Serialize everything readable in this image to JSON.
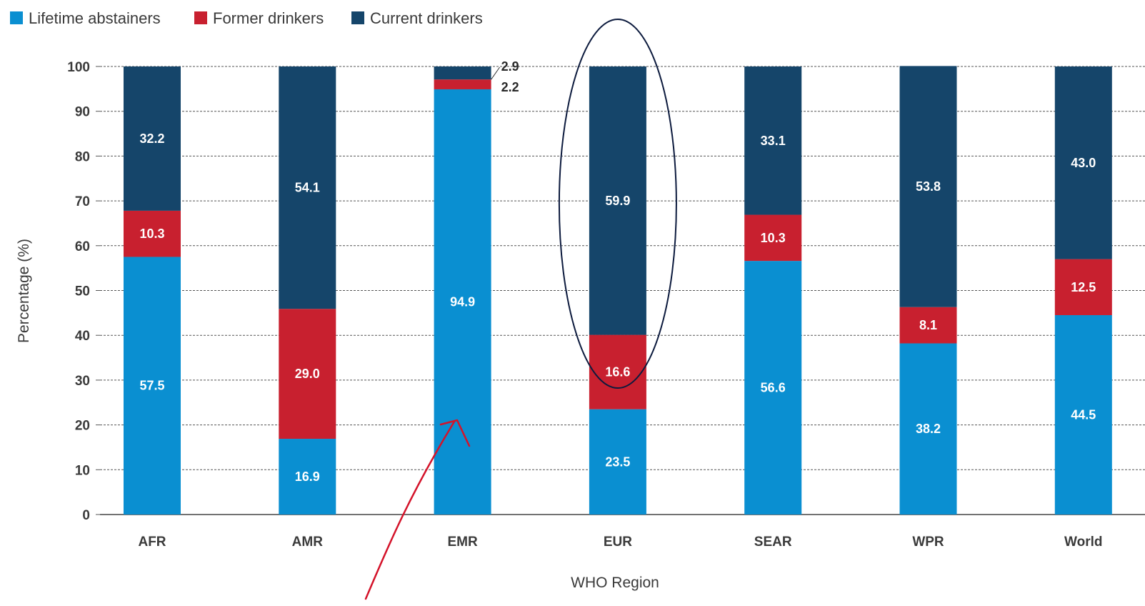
{
  "chart_data": {
    "type": "bar",
    "stacked": true,
    "categories": [
      "AFR",
      "AMR",
      "EMR",
      "EUR",
      "SEAR",
      "WPR",
      "World"
    ],
    "series": [
      {
        "name": "Lifetime abstainers",
        "color": "#0a8fd1",
        "values": [
          57.5,
          16.9,
          94.9,
          23.5,
          56.6,
          38.2,
          44.5
        ]
      },
      {
        "name": "Former drinkers",
        "color": "#c8202f",
        "values": [
          10.3,
          29.0,
          2.2,
          16.6,
          10.3,
          8.1,
          12.5
        ]
      },
      {
        "name": "Current drinkers",
        "color": "#15456a",
        "values": [
          32.2,
          54.1,
          2.9,
          59.9,
          33.1,
          53.8,
          43.0
        ]
      }
    ],
    "data_labels": [
      [
        "57.5",
        "16.9",
        "94.9",
        "23.5",
        "56.6",
        "38.2",
        "44.5"
      ],
      [
        "10.3",
        "29.0",
        "2.2",
        "16.6",
        "10.3",
        "8.1",
        "12.5"
      ],
      [
        "32.2",
        "54.1",
        "2.9",
        "59.9",
        "33.1",
        "53.8",
        "43.0"
      ]
    ],
    "ylabel": "Percentage (%)",
    "xlabel": "WHO Region",
    "ylim": [
      0,
      100
    ],
    "yticks": [
      0,
      10,
      20,
      30,
      40,
      50,
      60,
      70,
      80,
      90,
      100
    ],
    "grid": true,
    "legend_position": "top-left",
    "annotations": {
      "ellipse_around": "EUR",
      "arrow_to": "EMR",
      "ellipse_color": "#0d1b3e",
      "arrow_color": "#d4132a"
    }
  }
}
